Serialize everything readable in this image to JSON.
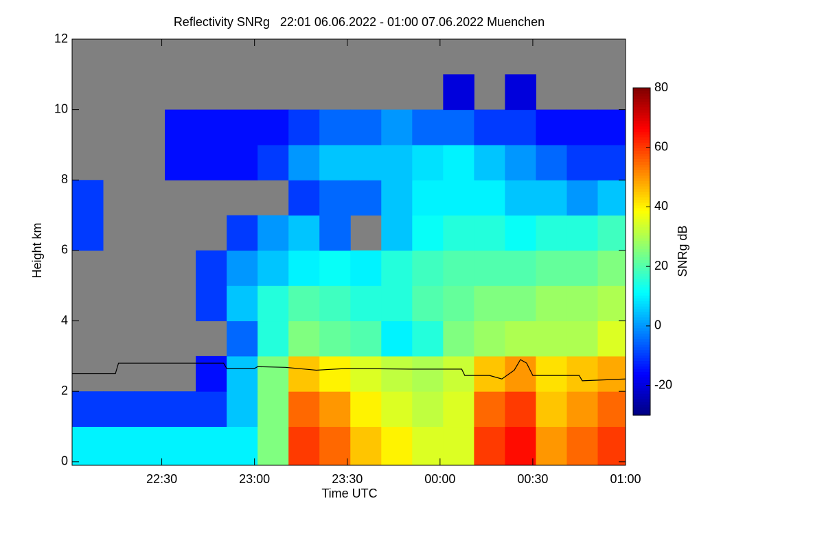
{
  "chart_data": {
    "type": "heatmap",
    "title": "Reflectivity SNRg   22:01 06.06.2022 - 01:00 07.06.2022 Muenchen",
    "x_label": "Time UTC",
    "y_label": "Height km",
    "colorbar_label": "SNRg dB",
    "xlim": [
      "22:01",
      "01:00"
    ],
    "xticks": [
      "22:30",
      "23:00",
      "23:30",
      "00:00",
      "00:30",
      "01:00"
    ],
    "ylim": [
      -0.1,
      12
    ],
    "yticks": [
      0,
      2,
      4,
      6,
      8,
      10,
      12
    ],
    "clim": [
      -30,
      80
    ],
    "cticks": [
      -20,
      0,
      20,
      40,
      60,
      80
    ],
    "nodata_color": "#808080",
    "colormap": "jet",
    "xbins": [
      "22:01",
      "22:11",
      "22:21",
      "22:31",
      "22:41",
      "22:51",
      "23:01",
      "23:11",
      "23:21",
      "23:31",
      "23:41",
      "23:51",
      "00:01",
      "00:11",
      "00:21",
      "00:31",
      "00:41",
      "00:51",
      "01:00"
    ],
    "ybins": [
      0,
      1,
      2,
      3,
      4,
      5,
      6,
      7,
      8,
      9,
      10,
      11,
      12
    ],
    "z": [
      [
        10,
        10,
        10,
        10,
        10,
        10,
        25,
        60,
        55,
        45,
        40,
        35,
        35,
        60,
        65,
        50,
        55,
        60
      ],
      [
        -10,
        -10,
        -10,
        -10,
        -10,
        5,
        25,
        55,
        50,
        40,
        35,
        32,
        35,
        55,
        60,
        45,
        50,
        55
      ],
      [
        null,
        null,
        null,
        null,
        -15,
        5,
        25,
        45,
        40,
        35,
        32,
        30,
        33,
        45,
        50,
        42,
        45,
        48
      ],
      [
        null,
        null,
        null,
        null,
        null,
        -5,
        15,
        25,
        22,
        20,
        10,
        15,
        25,
        28,
        30,
        30,
        30,
        35
      ],
      [
        null,
        null,
        null,
        null,
        -10,
        5,
        15,
        20,
        18,
        15,
        15,
        20,
        22,
        25,
        25,
        28,
        28,
        30
      ],
      [
        null,
        null,
        null,
        null,
        -10,
        0,
        5,
        10,
        12,
        10,
        15,
        18,
        20,
        20,
        20,
        22,
        22,
        25
      ],
      [
        -10,
        null,
        null,
        null,
        null,
        -10,
        0,
        5,
        -5,
        null,
        5,
        12,
        15,
        15,
        12,
        15,
        15,
        18
      ],
      [
        -10,
        null,
        null,
        null,
        null,
        null,
        null,
        -10,
        -5,
        -5,
        5,
        10,
        10,
        10,
        5,
        5,
        0,
        5
      ],
      [
        null,
        null,
        null,
        -15,
        -15,
        -15,
        -10,
        0,
        5,
        5,
        5,
        8,
        10,
        5,
        0,
        -5,
        -10,
        -10
      ],
      [
        null,
        null,
        null,
        -15,
        -15,
        -15,
        -15,
        -10,
        -5,
        -5,
        0,
        -5,
        -5,
        -10,
        -10,
        -15,
        -15,
        -15
      ],
      [
        null,
        null,
        null,
        null,
        null,
        null,
        null,
        null,
        null,
        null,
        null,
        null,
        -20,
        null,
        -20,
        null,
        null,
        null
      ],
      [
        null,
        null,
        null,
        null,
        null,
        null,
        null,
        null,
        null,
        null,
        null,
        null,
        null,
        null,
        null,
        null,
        null,
        null
      ]
    ],
    "line": {
      "color": "#000000",
      "x": [
        "22:01",
        "22:15",
        "22:16",
        "22:50",
        "22:51",
        "23:00",
        "23:01",
        "23:10",
        "23:20",
        "23:30",
        "23:50",
        "00:07",
        "00:08",
        "00:16",
        "00:20",
        "00:24",
        "00:26",
        "00:28",
        "00:30",
        "00:45",
        "00:46",
        "01:00"
      ],
      "values": [
        2.5,
        2.5,
        2.8,
        2.8,
        2.65,
        2.65,
        2.7,
        2.68,
        2.6,
        2.65,
        2.63,
        2.63,
        2.45,
        2.45,
        2.35,
        2.6,
        2.9,
        2.8,
        2.45,
        2.45,
        2.3,
        2.35
      ]
    }
  }
}
